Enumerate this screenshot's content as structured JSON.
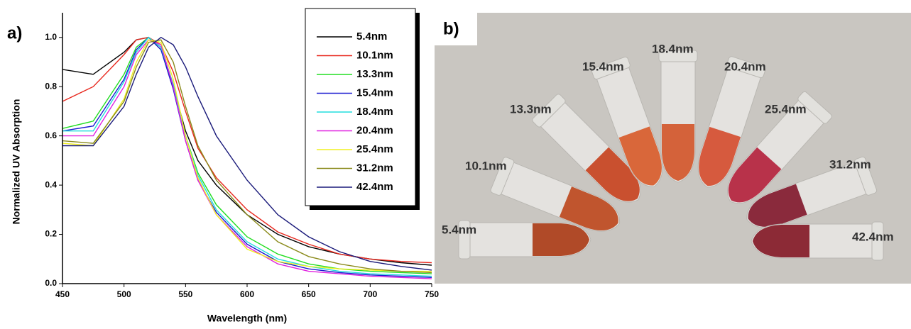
{
  "chart_data": {
    "type": "line",
    "panel_label": "a)",
    "x_label": "Wavelength (nm)",
    "y_label": "Normalized UV Absorption",
    "x": [
      450,
      475,
      500,
      510,
      520,
      530,
      540,
      550,
      560,
      575,
      600,
      625,
      650,
      675,
      700,
      725,
      750
    ],
    "series": [
      {
        "name": "5.4nm",
        "color": "#000000",
        "values": [
          0.87,
          0.85,
          0.94,
          0.99,
          1.0,
          0.96,
          0.8,
          0.62,
          0.5,
          0.4,
          0.28,
          0.2,
          0.15,
          0.12,
          0.1,
          0.085,
          0.075
        ]
      },
      {
        "name": "10.1nm",
        "color": "#e8281e",
        "values": [
          0.74,
          0.8,
          0.93,
          0.99,
          1.0,
          0.97,
          0.86,
          0.7,
          0.55,
          0.43,
          0.3,
          0.21,
          0.16,
          0.12,
          0.1,
          0.09,
          0.085
        ]
      },
      {
        "name": "13.3nm",
        "color": "#22dd22",
        "values": [
          0.63,
          0.66,
          0.85,
          0.96,
          1.0,
          0.95,
          0.8,
          0.6,
          0.45,
          0.32,
          0.19,
          0.12,
          0.08,
          0.06,
          0.05,
          0.045,
          0.04
        ]
      },
      {
        "name": "15.4nm",
        "color": "#1a1ad0",
        "values": [
          0.62,
          0.64,
          0.83,
          0.95,
          1.0,
          0.95,
          0.79,
          0.58,
          0.42,
          0.29,
          0.16,
          0.09,
          0.06,
          0.045,
          0.035,
          0.03,
          0.025
        ]
      },
      {
        "name": "18.4nm",
        "color": "#22dddd",
        "values": [
          0.62,
          0.62,
          0.82,
          0.94,
          1.0,
          0.96,
          0.81,
          0.6,
          0.44,
          0.3,
          0.17,
          0.1,
          0.07,
          0.05,
          0.04,
          0.035,
          0.03
        ]
      },
      {
        "name": "20.4nm",
        "color": "#e020e0",
        "values": [
          0.6,
          0.6,
          0.8,
          0.93,
          0.99,
          0.97,
          0.8,
          0.58,
          0.42,
          0.28,
          0.15,
          0.08,
          0.05,
          0.04,
          0.03,
          0.025,
          0.02
        ]
      },
      {
        "name": "25.4nm",
        "color": "#f0f020",
        "values": [
          0.57,
          0.56,
          0.75,
          0.9,
          0.99,
          0.98,
          0.83,
          0.6,
          0.43,
          0.28,
          0.14,
          0.09,
          0.07,
          0.06,
          0.055,
          0.05,
          0.05
        ]
      },
      {
        "name": "31.2nm",
        "color": "#8a8a1a",
        "values": [
          0.58,
          0.57,
          0.74,
          0.88,
          0.98,
          0.99,
          0.9,
          0.72,
          0.56,
          0.42,
          0.28,
          0.17,
          0.11,
          0.08,
          0.06,
          0.05,
          0.045
        ]
      },
      {
        "name": "42.4nm",
        "color": "#1a1a7a",
        "values": [
          0.56,
          0.56,
          0.72,
          0.85,
          0.96,
          1.0,
          0.97,
          0.88,
          0.76,
          0.6,
          0.42,
          0.28,
          0.19,
          0.13,
          0.09,
          0.07,
          0.055
        ]
      }
    ],
    "xlim": [
      450,
      750
    ],
    "xticks": [
      450,
      500,
      550,
      600,
      650,
      700,
      750
    ],
    "ylim": [
      0,
      1.1
    ],
    "yticks": [
      {
        "value": 0,
        "label": "0.0"
      },
      0.2,
      0.4,
      0.6,
      0.8,
      {
        "value": 1,
        "label": "1.0"
      }
    ],
    "legend": "upper right"
  },
  "photo": {
    "panel_label": "b)",
    "tubes": [
      {
        "label": "5.4nm",
        "color": "#b04a28"
      },
      {
        "label": "10.1nm",
        "color": "#c0552e"
      },
      {
        "label": "13.3nm",
        "color": "#c9502f"
      },
      {
        "label": "15.4nm",
        "color": "#d9673a"
      },
      {
        "label": "18.4nm",
        "color": "#d4623a"
      },
      {
        "label": "20.4nm",
        "color": "#d65a3e"
      },
      {
        "label": "25.4nm",
        "color": "#b8324a"
      },
      {
        "label": "31.2nm",
        "color": "#8a2a3c"
      },
      {
        "label": "42.4nm",
        "color": "#8c2a36"
      }
    ]
  }
}
